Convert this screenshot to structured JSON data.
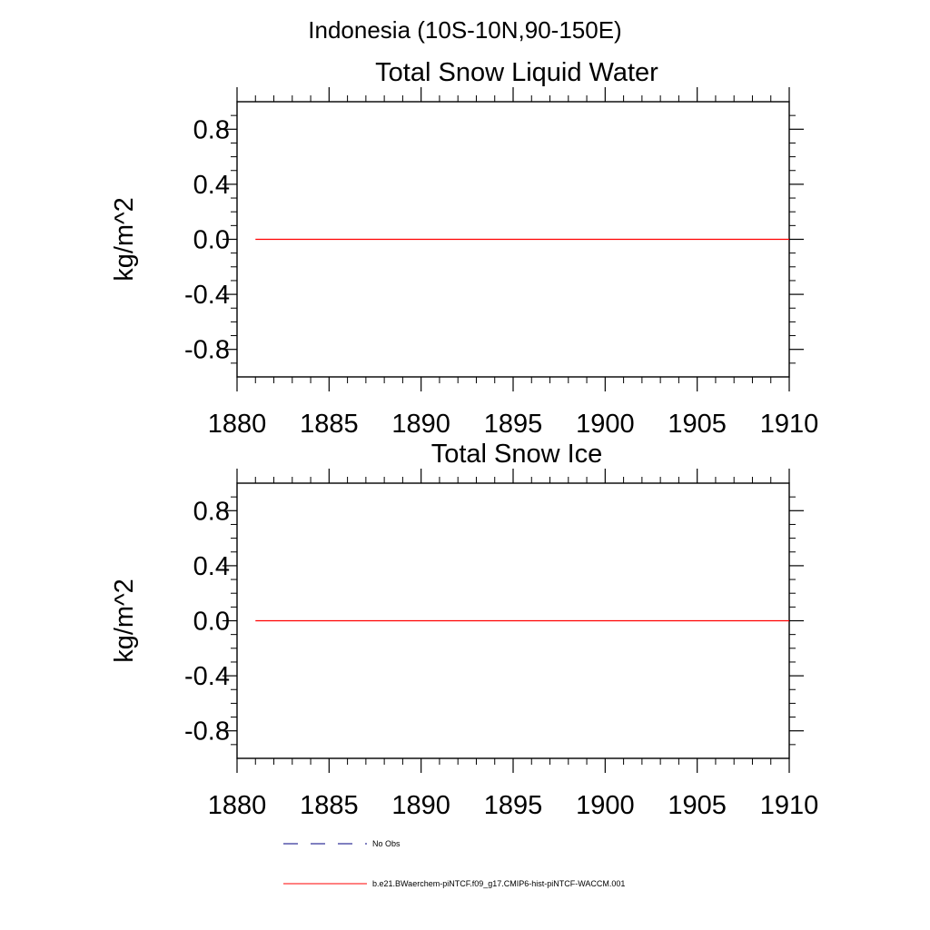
{
  "figure": {
    "suptitle": "Indonesia (10S-10N,90-150E)"
  },
  "chart_data": [
    {
      "type": "line",
      "title": "Total Snow Liquid Water",
      "xlabel": "",
      "ylabel": "kg/m^2",
      "xlim": [
        1880,
        1910
      ],
      "ylim": [
        -1,
        1
      ],
      "xticks": [
        1880,
        1885,
        1890,
        1895,
        1900,
        1905,
        1910
      ],
      "xtick_labels": [
        "1880",
        "1885",
        "1890",
        "1895",
        "1900",
        "1905",
        "1910"
      ],
      "yticks": [
        0.8,
        0.4,
        0.0,
        -0.4,
        -0.8
      ],
      "ytick_labels": [
        "0.8",
        "0.4",
        "0.0",
        "-0.4",
        "-0.8"
      ],
      "series": [
        {
          "name": "b.e21.BWaerchem-piNTCF.f09_g17.CMIP6-hist-piNTCF-WACCM.001",
          "color": "#ff0000",
          "x": [
            1881,
            1910
          ],
          "y": [
            0.0,
            0.0
          ]
        }
      ]
    },
    {
      "type": "line",
      "title": "Total Snow Ice",
      "xlabel": "",
      "ylabel": "kg/m^2",
      "xlim": [
        1880,
        1910
      ],
      "ylim": [
        -1,
        1
      ],
      "xticks": [
        1880,
        1885,
        1890,
        1895,
        1900,
        1905,
        1910
      ],
      "xtick_labels": [
        "1880",
        "1885",
        "1890",
        "1895",
        "1900",
        "1905",
        "1910"
      ],
      "yticks": [
        0.8,
        0.4,
        0.0,
        -0.4,
        -0.8
      ],
      "ytick_labels": [
        "0.8",
        "0.4",
        "0.0",
        "-0.4",
        "-0.8"
      ],
      "series": [
        {
          "name": "b.e21.BWaerchem-piNTCF.f09_g17.CMIP6-hist-piNTCF-WACCM.001",
          "color": "#ff0000",
          "x": [
            1881,
            1910
          ],
          "y": [
            0.0,
            0.0
          ]
        }
      ]
    }
  ],
  "legend": {
    "placement": "bottom",
    "entries": [
      {
        "label": "No Obs",
        "color": "#000080",
        "style": "dashed"
      },
      {
        "label": "b.e21.BWaerchem-piNTCF.f09_g17.CMIP6-hist-piNTCF-WACCM.001",
        "color": "#ff0000",
        "style": "solid"
      }
    ]
  }
}
